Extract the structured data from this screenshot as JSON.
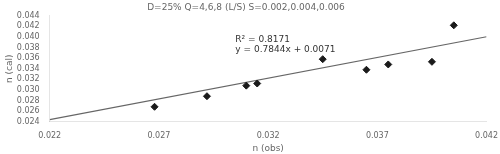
{
  "chart_data": {
    "type": "scatter",
    "title": "D=25% Q=4,6,8 (L/S) S=0.002,0.004,0.006",
    "xlabel": "n (obs)",
    "ylabel": "n (cal)",
    "xlim": [
      0.022,
      0.042
    ],
    "ylim": [
      0.024,
      0.044
    ],
    "xticks": [
      0.022,
      0.027,
      0.032,
      0.037,
      0.042
    ],
    "yticks": [
      0.024,
      0.026,
      0.028,
      {
        "value": 0.03,
        "label": "0.030"
      },
      0.032,
      0.034,
      0.036,
      0.038,
      {
        "value": 0.04,
        "label": "0.040"
      },
      0.042,
      0.044
    ],
    "grid": false,
    "series": [
      {
        "type": "line",
        "color": "#666666",
        "x": [
          0.022,
          0.042
        ],
        "values": [
          0.0243568,
          0.0400448
        ]
      },
      {
        "type": "scatter",
        "color": "#1a1a1a",
        "marker": "diamond",
        "x": [
          0.0268,
          0.031,
          0.0315,
          0.0292,
          0.0345,
          0.0365,
          0.0375,
          0.0395,
          0.0405
        ],
        "values": [
          0.0268,
          0.0308,
          0.0312,
          0.0288,
          0.0358,
          0.0338,
          0.0348,
          0.0353,
          0.0422
        ]
      }
    ],
    "annotations": [
      {
        "text": [
          "R² = 0.8171",
          "y = 0.7844x + 0.0071"
        ],
        "x": 0.0305,
        "y": 0.0368
      }
    ]
  }
}
